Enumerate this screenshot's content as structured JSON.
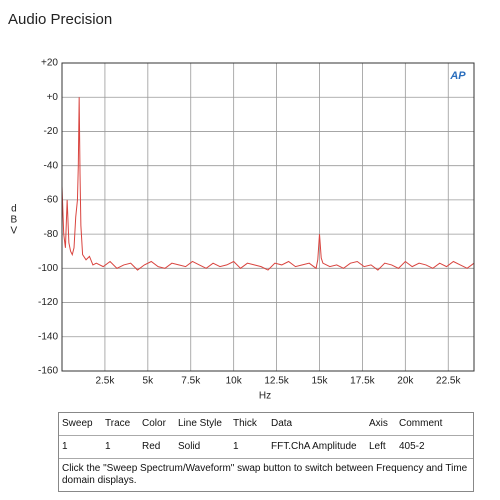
{
  "title": "Audio Precision",
  "logo": "AP",
  "chart_data": {
    "type": "line",
    "y_label": "dBV",
    "x_label": "Hz",
    "color": "#d9443f",
    "grid": true,
    "xlim": [
      0,
      24000
    ],
    "xticks": [
      {
        "value": 2500,
        "label": "2.5k"
      },
      {
        "value": 5000,
        "label": "5k"
      },
      {
        "value": 7500,
        "label": "7.5k"
      },
      {
        "value": 10000,
        "label": "10k"
      },
      {
        "value": 12500,
        "label": "12.5k"
      },
      {
        "value": 15000,
        "label": "15k"
      },
      {
        "value": 17500,
        "label": "17.5k"
      },
      {
        "value": 20000,
        "label": "20k"
      },
      {
        "value": 22500,
        "label": "22.5k"
      }
    ],
    "ylim": [
      -160,
      20
    ],
    "yticks": [
      {
        "value": 20,
        "label": "+20"
      },
      {
        "value": 0,
        "label": "+0"
      },
      -20,
      -40,
      -60,
      -80,
      -100,
      -120,
      -140,
      -160
    ],
    "x": [
      0,
      100,
      200,
      300,
      400,
      500,
      600,
      700,
      800,
      900,
      950,
      1000,
      1050,
      1100,
      1200,
      1400,
      1600,
      1800,
      2000,
      2400,
      2800,
      3200,
      3600,
      4000,
      4400,
      4800,
      5200,
      5600,
      6000,
      6400,
      6800,
      7200,
      7600,
      8000,
      8400,
      8800,
      9200,
      9600,
      10000,
      10400,
      10800,
      11200,
      11600,
      12000,
      12400,
      12800,
      13200,
      13600,
      14000,
      14400,
      14800,
      14900,
      15000,
      15100,
      15200,
      15600,
      16000,
      16400,
      16800,
      17200,
      17600,
      18000,
      18400,
      18800,
      19200,
      19600,
      20000,
      20400,
      20800,
      21200,
      21600,
      22000,
      22400,
      22800,
      23200,
      23600,
      24000
    ],
    "values": [
      -52,
      -80,
      -88,
      -60,
      -85,
      -90,
      -92,
      -88,
      -70,
      -60,
      -40,
      0,
      -45,
      -75,
      -92,
      -95,
      -93,
      -98,
      -97,
      -99,
      -96,
      -100,
      -98,
      -97,
      -101,
      -98,
      -96,
      -99,
      -100,
      -97,
      -98,
      -99,
      -96,
      -98,
      -100,
      -97,
      -99,
      -98,
      -96,
      -100,
      -97,
      -98,
      -99,
      -101,
      -97,
      -98,
      -96,
      -99,
      -98,
      -97,
      -100,
      -95,
      -80,
      -94,
      -97,
      -99,
      -98,
      -100,
      -97,
      -96,
      -99,
      -98,
      -101,
      -97,
      -98,
      -100,
      -96,
      -99,
      -97,
      -98,
      -100,
      -97,
      -99,
      -96,
      -98,
      -100,
      -97
    ]
  },
  "table": {
    "header": [
      "Sweep",
      "Trace",
      "Color",
      "Line Style",
      "Thick",
      "Data",
      "Axis",
      "Comment"
    ],
    "rows": [
      [
        "1",
        "1",
        "Red",
        "Solid",
        "1",
        "FFT.ChA Amplitude",
        "Left",
        "405-2"
      ]
    ]
  },
  "note": "Click the \"Sweep Spectrum/Waveform\" swap button to switch between Frequency and Time domain displays."
}
